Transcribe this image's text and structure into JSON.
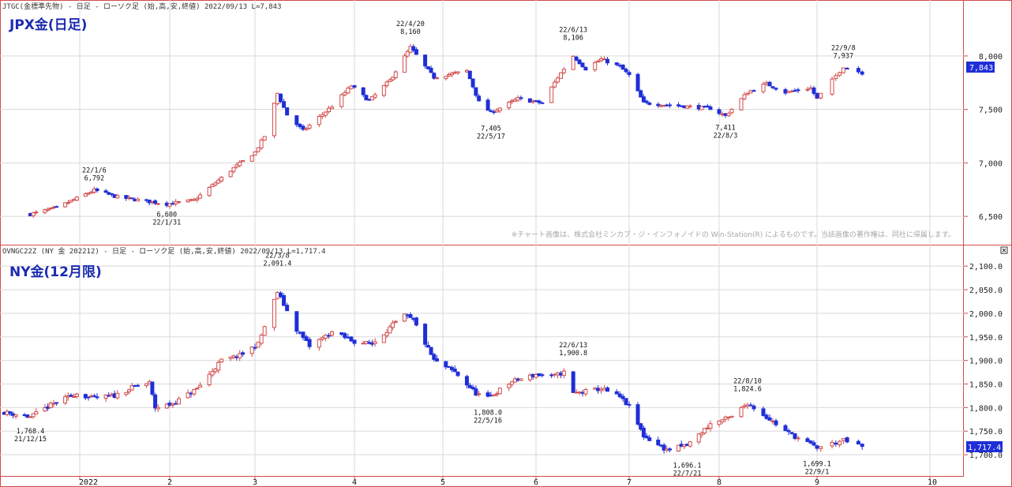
{
  "colors": {
    "up": "#d24a4a",
    "down": "#1f2ed6",
    "frame": "#d24a4a",
    "grid": "#d9d9d9",
    "title": "#1c2bb0",
    "last_bg": "#1f2ed6"
  },
  "panels": {
    "top": {
      "header": "JTGC(金標準先物) - 日足 - ローソク足 (始,高,安,終値)  2022/09/13 L=7,843",
      "title": "JPX金(日足)",
      "last_label": "7,843",
      "credit": "※チャート画像は、株式会社ミンカブ・ジ・インフォノイドの Win-Station(R) によるものです。当該画像の著作権は、同社に帰属します。"
    },
    "bottom": {
      "header": "OVNGC22Z (NY 金 202212) - 日足 - ローソク足 (始,高,安,終値)  2022/09/13 L=1,717.4",
      "title": "NY金(12月限)",
      "last_label": "1,717.4"
    }
  },
  "x_labels": [
    "2022",
    "2",
    "3",
    "4",
    "5",
    "6",
    "7",
    "8",
    "9",
    "10"
  ],
  "chart_data": [
    {
      "type": "candlestick",
      "title": "JPX金(日足)",
      "y_ticks": [
        "6,500",
        "7,000",
        "7,500",
        "8,000"
      ],
      "ylim": [
        6250,
        8420
      ],
      "annotations": [
        {
          "date": "22/1/6",
          "value": "6,792",
          "position": "above"
        },
        {
          "date": "22/1/31",
          "value": "6,600",
          "position": "below"
        },
        {
          "date": "22/4/20",
          "value": "8,160",
          "position": "above"
        },
        {
          "date": "22/5/17",
          "value": "7,405",
          "position": "below"
        },
        {
          "date": "22/6/13",
          "value": "8,106",
          "position": "above"
        },
        {
          "date": "22/8/3",
          "value": "7,411",
          "position": "below"
        },
        {
          "date": "22/9/8",
          "value": "7,937",
          "position": "above"
        }
      ],
      "last": 7843,
      "anchors": [
        [
          "2021-12-15",
          6520
        ],
        [
          "2021-12-24",
          6580
        ],
        [
          "2022-01-06",
          6745
        ],
        [
          "2022-01-14",
          6680
        ],
        [
          "2022-01-31",
          6615
        ],
        [
          "2022-02-09",
          6650
        ],
        [
          "2022-02-21",
          6930
        ],
        [
          "2022-03-01",
          7100
        ],
        [
          "2022-03-04",
          7250
        ],
        [
          "2022-03-08",
          7650
        ],
        [
          "2022-03-11",
          7450
        ],
        [
          "2022-03-16",
          7300
        ],
        [
          "2022-03-25",
          7530
        ],
        [
          "2022-03-31",
          7720
        ],
        [
          "2022-04-06",
          7580
        ],
        [
          "2022-04-13",
          7770
        ],
        [
          "2022-04-20",
          8080
        ],
        [
          "2022-04-25",
          7900
        ],
        [
          "2022-04-28",
          7800
        ],
        [
          "2022-05-09",
          7860
        ],
        [
          "2022-05-13",
          7570
        ],
        [
          "2022-05-17",
          7470
        ],
        [
          "2022-05-26",
          7600
        ],
        [
          "2022-06-03",
          7560
        ],
        [
          "2022-06-08",
          7800
        ],
        [
          "2022-06-13",
          8000
        ],
        [
          "2022-06-17",
          7880
        ],
        [
          "2022-06-22",
          7970
        ],
        [
          "2022-06-28",
          7900
        ],
        [
          "2022-07-01",
          7820
        ],
        [
          "2022-07-06",
          7560
        ],
        [
          "2022-07-15",
          7540
        ],
        [
          "2022-07-29",
          7510
        ],
        [
          "2022-08-03",
          7440
        ],
        [
          "2022-08-10",
          7660
        ],
        [
          "2022-08-16",
          7740
        ],
        [
          "2022-08-22",
          7660
        ],
        [
          "2022-08-30",
          7700
        ],
        [
          "2022-09-01",
          7600
        ],
        [
          "2022-09-08",
          7900
        ],
        [
          "2022-09-13",
          7843
        ]
      ]
    },
    {
      "type": "candlestick",
      "title": "NY金(12月限)",
      "y_ticks": [
        "1,700.0",
        "1,750.0",
        "1,800.0",
        "1,850.0",
        "1,900.0",
        "1,950.0",
        "2,000.0",
        "2,050.0",
        "2,100.0"
      ],
      "ylim": [
        1660,
        2122
      ],
      "annotations": [
        {
          "date": "21/12/15",
          "value": "1,768.4",
          "position": "below"
        },
        {
          "date": "22/3/8",
          "value": "2,091.4",
          "position": "above"
        },
        {
          "date": "22/5/16",
          "value": "1,808.0",
          "position": "below"
        },
        {
          "date": "22/6/13",
          "value": "1,900.8",
          "position": "above"
        },
        {
          "date": "22/7/21",
          "value": "1,696.1",
          "position": "below"
        },
        {
          "date": "22/8/10",
          "value": "1,824.6",
          "position": "above"
        },
        {
          "date": "22/9/1",
          "value": "1,699.1",
          "position": "below"
        }
      ],
      "last": 1717.4,
      "anchors": [
        [
          "2021-12-06",
          1790
        ],
        [
          "2021-12-15",
          1780
        ],
        [
          "2021-12-22",
          1805
        ],
        [
          "2021-12-31",
          1830
        ],
        [
          "2022-01-05",
          1820
        ],
        [
          "2022-01-13",
          1825
        ],
        [
          "2022-01-20",
          1845
        ],
        [
          "2022-01-25",
          1852
        ],
        [
          "2022-01-27",
          1800
        ],
        [
          "2022-02-02",
          1808
        ],
        [
          "2022-02-10",
          1840
        ],
        [
          "2022-02-18",
          1900
        ],
        [
          "2022-02-24",
          1910
        ],
        [
          "2022-03-02",
          1935
        ],
        [
          "2022-03-08",
          2045
        ],
        [
          "2022-03-14",
          1965
        ],
        [
          "2022-03-18",
          1930
        ],
        [
          "2022-03-25",
          1960
        ],
        [
          "2022-04-01",
          1940
        ],
        [
          "2022-04-07",
          1935
        ],
        [
          "2022-04-14",
          1975
        ],
        [
          "2022-04-18",
          1995
        ],
        [
          "2022-04-21",
          1985
        ],
        [
          "2022-04-28",
          1900
        ],
        [
          "2022-05-05",
          1875
        ],
        [
          "2022-05-12",
          1830
        ],
        [
          "2022-05-16",
          1820
        ],
        [
          "2022-05-24",
          1855
        ],
        [
          "2022-06-01",
          1870
        ],
        [
          "2022-06-06",
          1865
        ],
        [
          "2022-06-10",
          1875
        ],
        [
          "2022-06-13",
          1830
        ],
        [
          "2022-06-22",
          1840
        ],
        [
          "2022-06-28",
          1822
        ],
        [
          "2022-07-01",
          1802
        ],
        [
          "2022-07-06",
          1740
        ],
        [
          "2022-07-14",
          1710
        ],
        [
          "2022-07-21",
          1720
        ],
        [
          "2022-07-29",
          1765
        ],
        [
          "2022-08-05",
          1780
        ],
        [
          "2022-08-10",
          1810
        ],
        [
          "2022-08-16",
          1780
        ],
        [
          "2022-08-22",
          1750
        ],
        [
          "2022-08-26",
          1735
        ],
        [
          "2022-09-01",
          1715
        ],
        [
          "2022-09-08",
          1730
        ],
        [
          "2022-09-13",
          1717
        ]
      ]
    }
  ]
}
